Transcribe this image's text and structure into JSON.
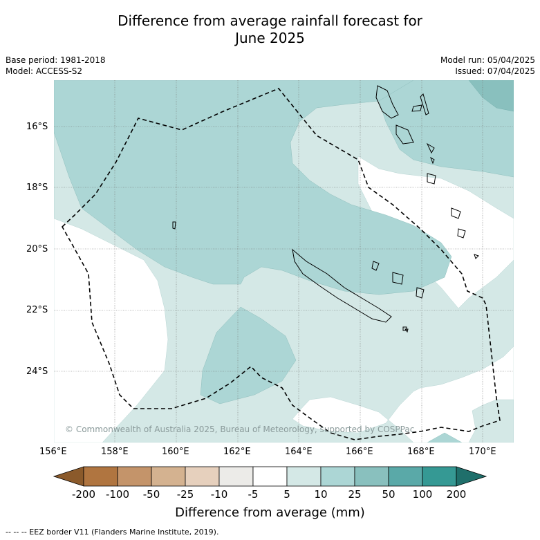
{
  "title_line1": "Difference from average rainfall forecast for",
  "title_line2": "June 2025",
  "base_period": "Base period: 1981-2018",
  "model": "Model: ACCESS-S2",
  "model_run": "Model run: 05/04/2025",
  "issued": "Issued: 07/04/2025",
  "copyright": "© Commonwealth of Australia 2025, Bureau of Meteorology, supported by COSPPac",
  "lat_labels": [
    "16°S",
    "18°S",
    "20°S",
    "22°S",
    "24°S"
  ],
  "lon_labels": [
    "156°E",
    "158°E",
    "160°E",
    "162°E",
    "164°E",
    "166°E",
    "168°E",
    "170°E"
  ],
  "colorbar": {
    "title": "Difference from average (mm)",
    "ticks": [
      "-200",
      "-100",
      "-50",
      "-25",
      "-10",
      "-5",
      "5",
      "10",
      "25",
      "50",
      "100",
      "200"
    ],
    "colors": [
      "#8b5a2b",
      "#b07540",
      "#c4946a",
      "#d4b290",
      "#e6d0bd",
      "#ecebe8",
      "#ffffff",
      "#d4e8e6",
      "#acd6d5",
      "#89c0be",
      "#5aa9a8",
      "#359994",
      "#1f6f6b"
    ]
  },
  "legend_note": "--  --  -- EEZ border V11 (Flanders Marine Institute, 2019)."
}
